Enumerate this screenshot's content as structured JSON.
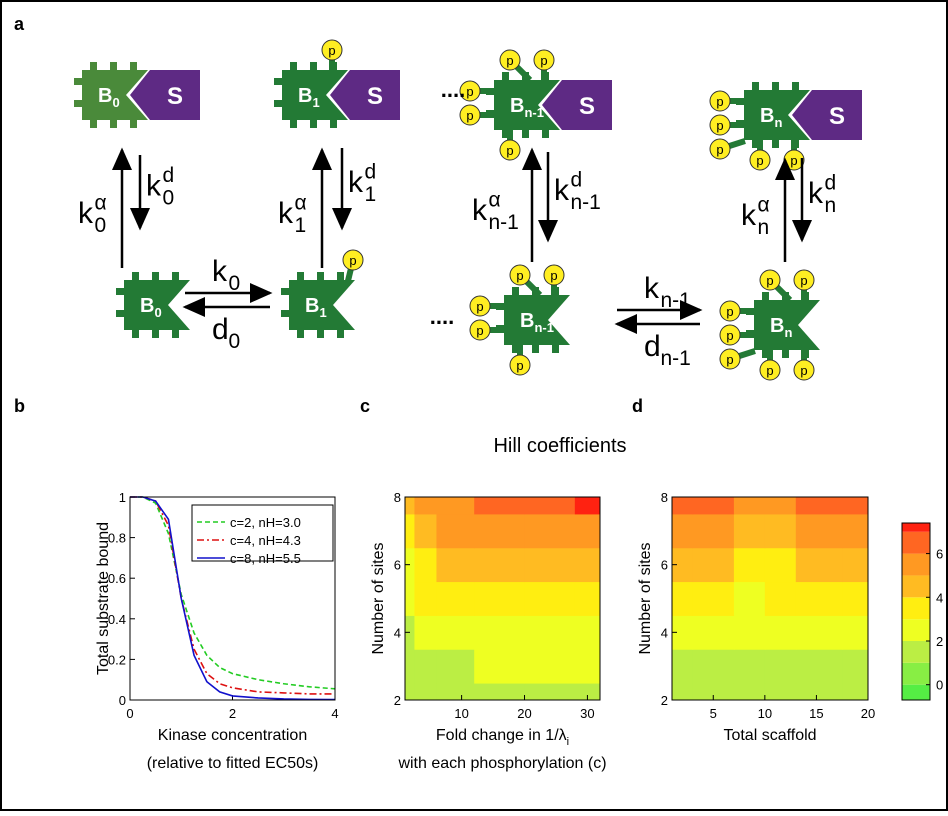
{
  "figure_title": "Hill coefficients",
  "diagram": {
    "panel_label": "a",
    "scaffold": "S",
    "phospho": "p",
    "ellipsis": "....",
    "nodes_top": [
      {
        "name": "B",
        "sub": "0"
      },
      {
        "name": "B",
        "sub": "1"
      },
      {
        "name": "B",
        "sub": "n-1"
      },
      {
        "name": "B",
        "sub": "n"
      }
    ],
    "nodes_bottom": [
      {
        "name": "B",
        "sub": "0"
      },
      {
        "name": "B",
        "sub": "1"
      },
      {
        "name": "B",
        "sub": "n-1"
      },
      {
        "name": "B",
        "sub": "n"
      }
    ],
    "vertical_rates": [
      {
        "up": {
          "base": "k",
          "sub": "0",
          "sup": "α"
        },
        "down": {
          "base": "k",
          "sub": "0",
          "sup": "d"
        }
      },
      {
        "up": {
          "base": "k",
          "sub": "1",
          "sup": "α"
        },
        "down": {
          "base": "k",
          "sub": "1",
          "sup": "d"
        }
      },
      {
        "up": {
          "base": "k",
          "sub": "n-1",
          "sup": "α"
        },
        "down": {
          "base": "k",
          "sub": "n-1",
          "sup": "d"
        }
      },
      {
        "up": {
          "base": "k",
          "sub": "n",
          "sup": "α"
        },
        "down": {
          "base": "k",
          "sub": "n",
          "sup": "d"
        }
      }
    ],
    "horizontal_rates": [
      {
        "forward": {
          "base": "k",
          "sub": "0"
        },
        "back": {
          "base": "d",
          "sub": "0"
        }
      },
      {
        "forward": {
          "base": "k",
          "sub": "n-1"
        },
        "back": {
          "base": "d",
          "sub": "n-1"
        }
      }
    ]
  },
  "chart_data": [
    {
      "type": "line",
      "panel_label": "b",
      "ylabel": "Total substrate bound",
      "xlabel": "Kinase concentration",
      "xlabel2": "(relative to fitted EC50s)",
      "x": [
        0,
        0.25,
        0.5,
        0.75,
        1,
        1.25,
        1.5,
        1.75,
        2,
        2.5,
        3,
        3.5,
        4
      ],
      "xlim": [
        0,
        4
      ],
      "xticks": [
        0,
        2,
        4
      ],
      "ylim": [
        0,
        1
      ],
      "yticks": [
        0,
        0.2,
        0.4,
        0.6,
        0.8,
        1
      ],
      "series": [
        {
          "name": "c=2, nH=3.0",
          "color": "#22cc22",
          "dash": "5,3",
          "values": [
            1,
            1,
            0.97,
            0.82,
            0.52,
            0.33,
            0.22,
            0.16,
            0.13,
            0.1,
            0.08,
            0.065,
            0.055
          ]
        },
        {
          "name": "c=4, nH=4.3",
          "color": "#dd1111",
          "dash": "7,3,2,3",
          "values": [
            1,
            1,
            0.98,
            0.86,
            0.5,
            0.25,
            0.13,
            0.08,
            0.06,
            0.04,
            0.035,
            0.03,
            0.03
          ]
        },
        {
          "name": "c=8, nH=5.5",
          "color": "#1111cc",
          "dash": "",
          "values": [
            1,
            1,
            0.98,
            0.89,
            0.5,
            0.22,
            0.09,
            0.04,
            0.02,
            0.01,
            0.005,
            0.003,
            0.002
          ]
        }
      ]
    },
    {
      "type": "contour",
      "panel_label": "c",
      "ylabel": "Number of sites",
      "xlabel": {
        "text": "Fold change in 1/λ",
        "sub": "i"
      },
      "xlabel2": "with each phosphorylation (c)",
      "x": [
        1,
        4,
        8,
        16,
        24,
        32
      ],
      "y": [
        2,
        3,
        4,
        5,
        6,
        7,
        8
      ],
      "xlim": [
        1,
        32
      ],
      "xticks": [
        10,
        20,
        30
      ],
      "ylim": [
        2,
        8
      ],
      "yticks": [
        2,
        4,
        6,
        8
      ],
      "z": [
        [
          1.2,
          1.3,
          1.3,
          1.4,
          1.4,
          1.4
        ],
        [
          1.5,
          1.8,
          1.9,
          2.0,
          2.0,
          2.0
        ],
        [
          1.9,
          2.4,
          2.6,
          2.7,
          2.8,
          2.8
        ],
        [
          2.3,
          3.0,
          3.3,
          3.5,
          3.6,
          3.7
        ],
        [
          2.8,
          3.7,
          4.1,
          4.4,
          4.6,
          4.7
        ],
        [
          3.4,
          4.5,
          5.0,
          5.4,
          5.6,
          5.7
        ],
        [
          4.2,
          5.4,
          5.9,
          6.4,
          6.7,
          7.0
        ]
      ]
    },
    {
      "type": "contour",
      "panel_label": "d",
      "ylabel": "Number of sites",
      "xlabel": {
        "text": "Total scaffold"
      },
      "x": [
        1,
        5,
        9,
        11,
        15,
        20
      ],
      "y": [
        2,
        3,
        4,
        5,
        6,
        7,
        8
      ],
      "xlim": [
        1,
        20
      ],
      "xticks": [
        5,
        10,
        15,
        20
      ],
      "ylim": [
        2,
        8
      ],
      "yticks": [
        2,
        4,
        6,
        8
      ],
      "z": [
        [
          1.1,
          1.1,
          1.2,
          1.5,
          1.1,
          1.0
        ],
        [
          1.7,
          1.7,
          1.8,
          1.9,
          1.7,
          1.6
        ],
        [
          2.4,
          2.4,
          2.3,
          2.5,
          2.4,
          2.3
        ],
        [
          3.3,
          3.2,
          2.9,
          3.0,
          3.1,
          3.1
        ],
        [
          4.3,
          4.2,
          3.6,
          3.5,
          4.0,
          4.0
        ],
        [
          5.5,
          5.2,
          4.5,
          4.2,
          5.0,
          5.0
        ],
        [
          6.9,
          6.4,
          5.5,
          5.2,
          6.1,
          6.1
        ]
      ]
    },
    {
      "type": "colorbar",
      "ylim": [
        -0.7,
        7.4
      ],
      "yticks": [
        0,
        2,
        4,
        6
      ],
      "levels": [
        -1,
        0,
        1,
        2,
        3,
        4,
        5,
        6,
        7,
        8
      ],
      "colors": [
        "#55ee44",
        "#88ee44",
        "#bbee44",
        "#eeff22",
        "#ffee11",
        "#ffbb22",
        "#ff9922",
        "#ff6622",
        "#ff2211"
      ]
    }
  ]
}
